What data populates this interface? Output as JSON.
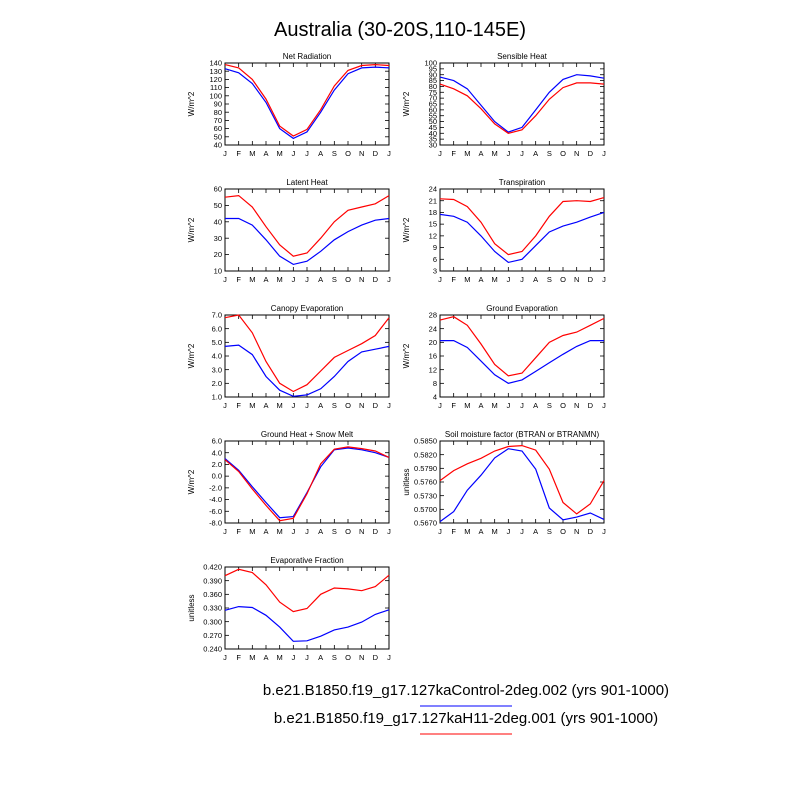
{
  "title": "Australia (30-20S,110-145E)",
  "months": [
    "J",
    "F",
    "M",
    "A",
    "M",
    "J",
    "J",
    "A",
    "S",
    "O",
    "N",
    "D",
    "J"
  ],
  "colors": {
    "control": "#0000ff",
    "experiment": "#ff0000"
  },
  "legend": [
    {
      "label": "b.e21.B1850.f19_g17.127kaControl-2deg.002 (yrs 901-1000)",
      "color": "#0000ff"
    },
    {
      "label": "b.e21.B1850.f19_g17.127kaH11-2deg.001 (yrs 901-1000)",
      "color": "#ff0000"
    }
  ],
  "chart_data": [
    {
      "type": "line",
      "title": "Net Radiation",
      "ylabel": "W/m^2",
      "ylim": [
        40,
        140
      ],
      "yticks": [
        "40",
        "50",
        "60",
        "70",
        "80",
        "90",
        "100",
        "110",
        "120",
        "130",
        "140"
      ],
      "x": [
        "J",
        "F",
        "M",
        "A",
        "M",
        "J",
        "J",
        "A",
        "S",
        "O",
        "N",
        "D",
        "J"
      ],
      "series": [
        {
          "values": [
            133,
            128,
            115,
            92,
            60,
            48,
            56,
            80,
            107,
            127,
            134,
            135,
            134
          ]
        },
        {
          "values": [
            138,
            134,
            120,
            96,
            63,
            51,
            59,
            83,
            112,
            131,
            137,
            138,
            137
          ]
        }
      ]
    },
    {
      "type": "line",
      "title": "Sensible Heat",
      "ylabel": "W/m^2",
      "ylim": [
        30,
        100
      ],
      "yticks": [
        "30",
        "35",
        "40",
        "45",
        "50",
        "55",
        "60",
        "65",
        "70",
        "75",
        "80",
        "85",
        "90",
        "95",
        "100"
      ],
      "x": [
        "J",
        "F",
        "M",
        "A",
        "M",
        "J",
        "J",
        "A",
        "S",
        "O",
        "N",
        "D",
        "J"
      ],
      "series": [
        {
          "values": [
            88,
            85,
            78,
            64,
            50,
            41,
            45,
            60,
            75,
            86,
            90,
            89,
            87
          ]
        },
        {
          "values": [
            82,
            78,
            72,
            61,
            48,
            40,
            43,
            55,
            69,
            79,
            83,
            83,
            82
          ]
        }
      ]
    },
    {
      "type": "line",
      "title": "Latent Heat",
      "ylabel": "W/m^2",
      "ylim": [
        10,
        60
      ],
      "yticks": [
        "10",
        "20",
        "30",
        "40",
        "50",
        "60"
      ],
      "x": [
        "J",
        "F",
        "M",
        "A",
        "M",
        "J",
        "J",
        "A",
        "S",
        "O",
        "N",
        "D",
        "J"
      ],
      "series": [
        {
          "values": [
            42,
            42,
            38,
            29,
            19,
            14,
            16,
            22,
            29,
            34,
            38,
            41,
            42
          ]
        },
        {
          "values": [
            55,
            56,
            49,
            37,
            26,
            19,
            21,
            30,
            40,
            47,
            49,
            51,
            56
          ]
        }
      ]
    },
    {
      "type": "line",
      "title": "Transpiration",
      "ylabel": "W/m^2",
      "ylim": [
        3,
        24
      ],
      "yticks": [
        "3",
        "6",
        "9",
        "12",
        "15",
        "18",
        "21",
        "24"
      ],
      "x": [
        "J",
        "F",
        "M",
        "A",
        "M",
        "J",
        "J",
        "A",
        "S",
        "O",
        "N",
        "D",
        "J"
      ],
      "series": [
        {
          "values": [
            17.5,
            17,
            15.5,
            12,
            8,
            5.2,
            6,
            9.5,
            13,
            14.5,
            15.5,
            16.8,
            18
          ]
        },
        {
          "values": [
            21.5,
            21.3,
            19.5,
            15.5,
            10,
            7.2,
            8,
            12,
            17,
            20.8,
            21,
            20.8,
            21.8
          ]
        }
      ]
    },
    {
      "type": "line",
      "title": "Canopy Evaporation",
      "ylabel": "W/m^2",
      "ylim": [
        1.0,
        7.0
      ],
      "yticks": [
        "1.0",
        "2.0",
        "3.0",
        "4.0",
        "5.0",
        "6.0",
        "7.0"
      ],
      "x": [
        "J",
        "F",
        "M",
        "A",
        "M",
        "J",
        "J",
        "A",
        "S",
        "O",
        "N",
        "D",
        "J"
      ],
      "series": [
        {
          "values": [
            4.7,
            4.8,
            4.1,
            2.5,
            1.5,
            1.05,
            1.15,
            1.6,
            2.5,
            3.6,
            4.3,
            4.5,
            4.7
          ]
        },
        {
          "values": [
            6.8,
            7.0,
            5.7,
            3.6,
            2.0,
            1.4,
            1.9,
            2.9,
            3.9,
            4.4,
            4.9,
            5.5,
            6.8
          ]
        }
      ]
    },
    {
      "type": "line",
      "title": "Ground Evaporation",
      "ylabel": "W/m^2",
      "ylim": [
        4,
        28
      ],
      "yticks": [
        "4",
        "8",
        "12",
        "16",
        "20",
        "24",
        "28"
      ],
      "x": [
        "J",
        "F",
        "M",
        "A",
        "M",
        "J",
        "J",
        "A",
        "S",
        "O",
        "N",
        "D",
        "J"
      ],
      "series": [
        {
          "values": [
            20.5,
            20.5,
            18.5,
            14.5,
            10.5,
            8,
            9,
            11.5,
            14,
            16.5,
            18.8,
            20.5,
            20.5
          ]
        },
        {
          "values": [
            26.5,
            27.5,
            25,
            19.5,
            13.5,
            10.2,
            11,
            15.5,
            20,
            22,
            23,
            25,
            27
          ]
        }
      ]
    },
    {
      "type": "line",
      "title": "Ground Heat + Snow Melt",
      "ylabel": "W/m^2",
      "ylim": [
        -8.0,
        6.0
      ],
      "yticks": [
        "-8.0",
        "-6.0",
        "-4.0",
        "-2.0",
        "0.0",
        "2.0",
        "4.0",
        "6.0"
      ],
      "x": [
        "J",
        "F",
        "M",
        "A",
        "M",
        "J",
        "J",
        "A",
        "S",
        "O",
        "N",
        "D",
        "J"
      ],
      "series": [
        {
          "values": [
            3.0,
            1.0,
            -1.8,
            -4.5,
            -7.1,
            -6.9,
            -2.8,
            1.6,
            4.5,
            4.8,
            4.5,
            4.0,
            3.2
          ]
        },
        {
          "values": [
            2.8,
            0.8,
            -2.2,
            -5.0,
            -7.6,
            -7.2,
            -3.0,
            2.1,
            4.6,
            5.0,
            4.7,
            4.3,
            3.2
          ]
        }
      ]
    },
    {
      "type": "line",
      "title": "Soil moisture factor (BTRAN or BTRANMN)",
      "ylabel": "unitless",
      "ylim": [
        0.567,
        0.585
      ],
      "yticks": [
        "0.5670",
        "0.5700",
        "0.5730",
        "0.5760",
        "0.5790",
        "0.5820",
        "0.5850"
      ],
      "x": [
        "J",
        "F",
        "M",
        "A",
        "M",
        "J",
        "J",
        "A",
        "S",
        "O",
        "N",
        "D",
        "J"
      ],
      "series": [
        {
          "values": [
            0.5673,
            0.5695,
            0.5742,
            0.5775,
            0.5813,
            0.5833,
            0.5828,
            0.5788,
            0.5703,
            0.5677,
            0.5683,
            0.5692,
            0.5678
          ]
        },
        {
          "values": [
            0.5763,
            0.5785,
            0.58,
            0.5812,
            0.5828,
            0.5838,
            0.584,
            0.583,
            0.5788,
            0.5715,
            0.569,
            0.5712,
            0.5763
          ]
        }
      ]
    },
    {
      "type": "line",
      "title": "Evaporative Fraction",
      "ylabel": "unitless",
      "ylim": [
        0.24,
        0.42
      ],
      "yticks": [
        "0.240",
        "0.270",
        "0.300",
        "0.330",
        "0.360",
        "0.390",
        "0.420"
      ],
      "x": [
        "J",
        "F",
        "M",
        "A",
        "M",
        "J",
        "J",
        "A",
        "S",
        "O",
        "N",
        "D",
        "J"
      ],
      "series": [
        {
          "values": [
            0.325,
            0.333,
            0.331,
            0.314,
            0.288,
            0.257,
            0.258,
            0.268,
            0.282,
            0.288,
            0.299,
            0.316,
            0.326
          ]
        },
        {
          "values": [
            0.401,
            0.415,
            0.408,
            0.381,
            0.343,
            0.322,
            0.329,
            0.36,
            0.374,
            0.372,
            0.368,
            0.377,
            0.402
          ]
        }
      ]
    }
  ]
}
